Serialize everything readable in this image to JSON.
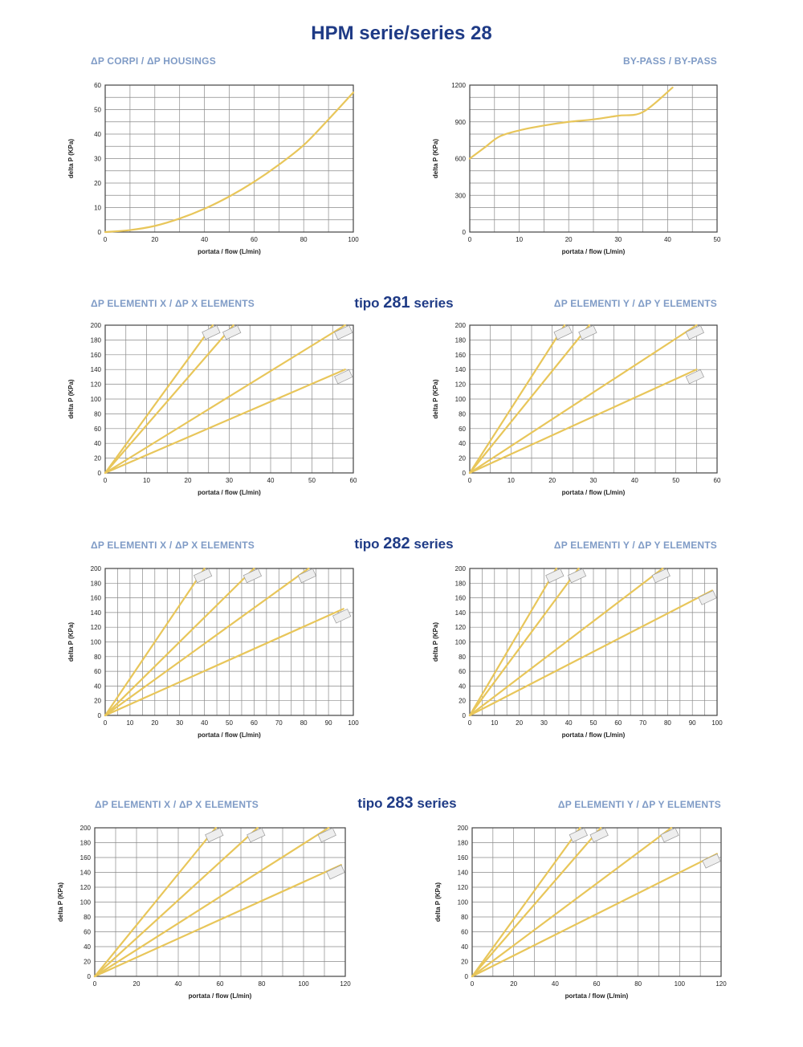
{
  "page": {
    "title": "HPM serie/series 28",
    "sections": [
      {
        "pre": "tipo",
        "num": "281",
        "post": "series"
      },
      {
        "pre": "tipo",
        "num": "282",
        "post": "series"
      },
      {
        "pre": "tipo",
        "num": "283",
        "post": "series"
      }
    ]
  },
  "colors": {
    "curve": "#e8c65a",
    "grid": "#8a8a8a",
    "frame": "#444444",
    "heading": "#1f3b86",
    "panel_title": "#7f9bc6"
  },
  "chart_data": [
    {
      "type": "line",
      "title": "ΔP CORPI / ΔP HOUSINGS",
      "xlabel": "portata / flow (L/min)",
      "ylabel": "delta P (KPa)",
      "xlim": [
        0,
        100
      ],
      "ylim": [
        0,
        60
      ],
      "xticks": [
        0,
        20,
        40,
        60,
        80,
        100
      ],
      "yticks": [
        0,
        10,
        20,
        30,
        40,
        50,
        60
      ],
      "grid": true,
      "series": [
        {
          "name": "",
          "x": [
            0,
            10,
            20,
            30,
            40,
            50,
            60,
            70,
            80,
            90,
            100
          ],
          "y": [
            0,
            0.8,
            2.5,
            5.5,
            9.5,
            14.5,
            20.5,
            27.5,
            35.5,
            46,
            57
          ]
        }
      ]
    },
    {
      "type": "line",
      "title": "BY-PASS / BY-PASS",
      "xlabel": "portata / flow (L/min)",
      "ylabel": "delta P (KPa)",
      "xlim": [
        0,
        50
      ],
      "ylim": [
        0,
        1200
      ],
      "xticks": [
        0,
        10,
        20,
        30,
        40,
        50
      ],
      "yticks": [
        0,
        300,
        600,
        900,
        1200
      ],
      "grid": true,
      "series": [
        {
          "name": "",
          "x": [
            0,
            3,
            6,
            10,
            15,
            20,
            25,
            30,
            35,
            41
          ],
          "y": [
            600,
            690,
            780,
            830,
            870,
            900,
            920,
            950,
            980,
            1180
          ]
        }
      ]
    },
    {
      "type": "line",
      "title": "ΔP ELEMENTI X / ΔP X ELEMENTS",
      "xlabel": "portata / flow (L/min)",
      "ylabel": "delta P (KPa)",
      "xlim": [
        0,
        60
      ],
      "ylim": [
        0,
        200
      ],
      "xticks": [
        0,
        10,
        20,
        30,
        40,
        50,
        60
      ],
      "yticks": [
        0,
        20,
        40,
        60,
        80,
        100,
        120,
        140,
        160,
        180,
        200
      ],
      "grid": true,
      "series": [
        {
          "name": "",
          "x": [
            0,
            26
          ],
          "y": [
            0,
            200
          ]
        },
        {
          "name": "",
          "x": [
            0,
            31
          ],
          "y": [
            0,
            200
          ]
        },
        {
          "name": "",
          "x": [
            0,
            58
          ],
          "y": [
            0,
            200
          ]
        },
        {
          "name": "",
          "x": [
            0,
            58
          ],
          "y": [
            0,
            140
          ]
        }
      ]
    },
    {
      "type": "line",
      "title": "ΔP ELEMENTI Y / ΔP Y ELEMENTS",
      "xlabel": "portata / flow (L/min)",
      "ylabel": "delta P (KPa)",
      "xlim": [
        0,
        60
      ],
      "ylim": [
        0,
        200
      ],
      "xticks": [
        0,
        10,
        20,
        30,
        40,
        50,
        60
      ],
      "yticks": [
        0,
        20,
        40,
        60,
        80,
        100,
        120,
        140,
        160,
        180,
        200
      ],
      "grid": true,
      "series": [
        {
          "name": "",
          "x": [
            0,
            23
          ],
          "y": [
            0,
            200
          ]
        },
        {
          "name": "",
          "x": [
            0,
            29
          ],
          "y": [
            0,
            200
          ]
        },
        {
          "name": "",
          "x": [
            0,
            55
          ],
          "y": [
            0,
            200
          ]
        },
        {
          "name": "",
          "x": [
            0,
            55
          ],
          "y": [
            0,
            140
          ]
        }
      ]
    },
    {
      "type": "line",
      "title": "ΔP ELEMENTI X / ΔP X ELEMENTS",
      "xlabel": "portata / flow (L/min)",
      "ylabel": "delta P (KPa)",
      "xlim": [
        0,
        100
      ],
      "ylim": [
        0,
        200
      ],
      "xticks": [
        0,
        10,
        20,
        30,
        40,
        50,
        60,
        70,
        80,
        90,
        100
      ],
      "yticks": [
        0,
        20,
        40,
        60,
        80,
        100,
        120,
        140,
        160,
        180,
        200
      ],
      "grid": true,
      "series": [
        {
          "name": "",
          "x": [
            0,
            40
          ],
          "y": [
            0,
            200
          ]
        },
        {
          "name": "",
          "x": [
            0,
            60
          ],
          "y": [
            0,
            200
          ]
        },
        {
          "name": "",
          "x": [
            0,
            82
          ],
          "y": [
            0,
            200
          ]
        },
        {
          "name": "",
          "x": [
            0,
            96
          ],
          "y": [
            0,
            145
          ]
        }
      ]
    },
    {
      "type": "line",
      "title": "ΔP ELEMENTI Y / ΔP Y ELEMENTS",
      "xlabel": "portata / flow (L/min)",
      "ylabel": "delta P (KPa)",
      "xlim": [
        0,
        100
      ],
      "ylim": [
        0,
        200
      ],
      "xticks": [
        0,
        10,
        20,
        30,
        40,
        50,
        60,
        70,
        80,
        90,
        100
      ],
      "yticks": [
        0,
        20,
        40,
        60,
        80,
        100,
        120,
        140,
        160,
        180,
        200
      ],
      "grid": true,
      "series": [
        {
          "name": "",
          "x": [
            0,
            35
          ],
          "y": [
            0,
            200
          ]
        },
        {
          "name": "",
          "x": [
            0,
            44
          ],
          "y": [
            0,
            200
          ]
        },
        {
          "name": "",
          "x": [
            0,
            78
          ],
          "y": [
            0,
            200
          ]
        },
        {
          "name": "",
          "x": [
            0,
            98
          ],
          "y": [
            0,
            170
          ]
        }
      ]
    },
    {
      "type": "line",
      "title": "ΔP ELEMENTI X / ΔP X ELEMENTS",
      "xlabel": "portata / flow (L/min)",
      "ylabel": "delta P (KPa)",
      "xlim": [
        0,
        120
      ],
      "ylim": [
        0,
        200
      ],
      "xticks": [
        0,
        20,
        40,
        60,
        80,
        100,
        120
      ],
      "yticks": [
        0,
        20,
        40,
        60,
        80,
        100,
        120,
        140,
        160,
        180,
        200
      ],
      "grid": true,
      "series": [
        {
          "name": "",
          "x": [
            0,
            58
          ],
          "y": [
            0,
            200
          ]
        },
        {
          "name": "",
          "x": [
            0,
            78
          ],
          "y": [
            0,
            200
          ]
        },
        {
          "name": "",
          "x": [
            0,
            112
          ],
          "y": [
            0,
            200
          ]
        },
        {
          "name": "",
          "x": [
            0,
            118
          ],
          "y": [
            0,
            150
          ]
        }
      ]
    },
    {
      "type": "line",
      "title": "ΔP ELEMENTI Y / ΔP Y ELEMENTS",
      "xlabel": "portata / flow (L/min)",
      "ylabel": "delta P (KPa)",
      "xlim": [
        0,
        120
      ],
      "ylim": [
        0,
        200
      ],
      "xticks": [
        0,
        20,
        40,
        60,
        80,
        100,
        120
      ],
      "yticks": [
        0,
        20,
        40,
        60,
        80,
        100,
        120,
        140,
        160,
        180,
        200
      ],
      "grid": true,
      "series": [
        {
          "name": "",
          "x": [
            0,
            52
          ],
          "y": [
            0,
            200
          ]
        },
        {
          "name": "",
          "x": [
            0,
            62
          ],
          "y": [
            0,
            200
          ]
        },
        {
          "name": "",
          "x": [
            0,
            96
          ],
          "y": [
            0,
            200
          ]
        },
        {
          "name": "",
          "x": [
            0,
            118
          ],
          "y": [
            0,
            165
          ]
        }
      ]
    }
  ]
}
